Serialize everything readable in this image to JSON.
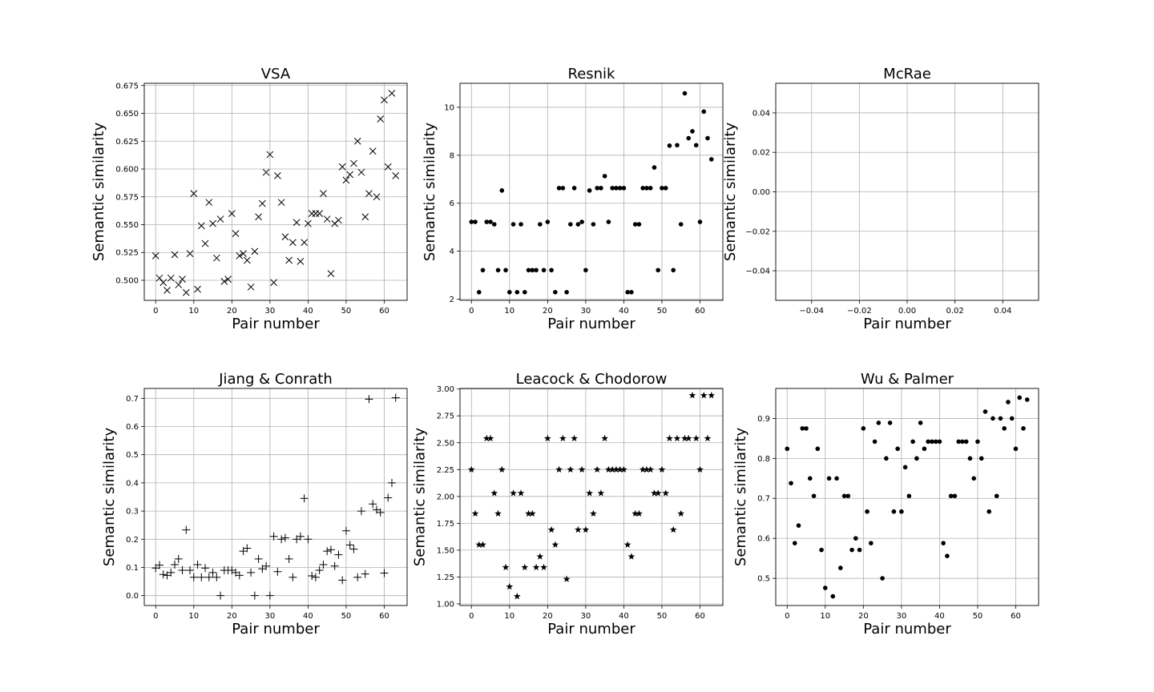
{
  "figure": {
    "background": "#ffffff",
    "marker_color": "#000000",
    "grid_color": "#b0b0b0"
  },
  "chart_data": [
    {
      "type": "scatter",
      "title": "VSA",
      "xlabel": "Pair number",
      "ylabel": "Semantic similarity",
      "marker": "x",
      "grid": true,
      "xlim": [
        -3,
        66
      ],
      "ylim": [
        0.482,
        0.677
      ],
      "xticks": [
        0,
        10,
        20,
        30,
        40,
        50,
        60
      ],
      "xtick_labels": [
        "0",
        "10",
        "20",
        "30",
        "40",
        "50",
        "60"
      ],
      "yticks": [
        0.5,
        0.525,
        0.55,
        0.575,
        0.6,
        0.625,
        0.65,
        0.675
      ],
      "ytick_labels": [
        "0.500",
        "0.525",
        "0.550",
        "0.575",
        "0.600",
        "0.625",
        "0.650",
        "0.675"
      ],
      "x": [
        0,
        1,
        2,
        3,
        4,
        5,
        6,
        7,
        8,
        9,
        10,
        11,
        12,
        13,
        14,
        15,
        16,
        17,
        18,
        19,
        20,
        21,
        22,
        23,
        24,
        25,
        26,
        27,
        28,
        29,
        30,
        31,
        32,
        33,
        34,
        35,
        36,
        37,
        38,
        39,
        40,
        41,
        42,
        43,
        44,
        45,
        46,
        47,
        48,
        49,
        50,
        51,
        52,
        53,
        54,
        55,
        56,
        57,
        58,
        59,
        60,
        61,
        62,
        63
      ],
      "y": [
        0.522,
        0.502,
        0.498,
        0.491,
        0.502,
        0.523,
        0.496,
        0.501,
        0.489,
        0.524,
        0.578,
        0.492,
        0.549,
        0.533,
        0.57,
        0.551,
        0.52,
        0.555,
        0.499,
        0.501,
        0.56,
        0.542,
        0.522,
        0.524,
        0.518,
        0.494,
        0.526,
        0.557,
        0.569,
        0.597,
        0.613,
        0.498,
        0.594,
        0.57,
        0.539,
        0.518,
        0.534,
        0.552,
        0.517,
        0.534,
        0.551,
        0.56,
        0.56,
        0.56,
        0.578,
        0.555,
        0.506,
        0.551,
        0.554,
        0.602,
        0.59,
        0.595,
        0.605,
        0.625,
        0.597,
        0.557,
        0.578,
        0.616,
        0.575,
        0.645,
        0.662,
        0.602,
        0.668,
        0.594
      ]
    },
    {
      "type": "scatter",
      "title": "Resnik",
      "xlabel": "Pair number",
      "ylabel": "Semantic similarity",
      "marker": "dot",
      "grid": true,
      "xlim": [
        -3,
        66
      ],
      "ylim": [
        1.95,
        11.0
      ],
      "xticks": [
        0,
        10,
        20,
        30,
        40,
        50,
        60
      ],
      "xtick_labels": [
        "0",
        "10",
        "20",
        "30",
        "40",
        "50",
        "60"
      ],
      "yticks": [
        2,
        4,
        6,
        8,
        10
      ],
      "ytick_labels": [
        "2",
        "4",
        "6",
        "8",
        "10"
      ],
      "x": [
        0,
        1,
        2,
        3,
        4,
        5,
        6,
        7,
        8,
        9,
        10,
        11,
        12,
        13,
        14,
        15,
        16,
        17,
        18,
        19,
        20,
        21,
        22,
        23,
        24,
        25,
        26,
        27,
        28,
        29,
        30,
        31,
        32,
        33,
        34,
        35,
        36,
        37,
        38,
        39,
        40,
        41,
        42,
        43,
        44,
        45,
        46,
        47,
        48,
        49,
        50,
        51,
        52,
        53,
        54,
        55,
        56,
        57,
        58,
        59,
        60,
        61,
        62,
        63
      ],
      "y": [
        5.22,
        5.22,
        2.29,
        3.21,
        5.22,
        5.22,
        5.12,
        3.21,
        6.53,
        3.21,
        2.29,
        5.12,
        2.29,
        5.12,
        2.29,
        3.21,
        3.21,
        3.21,
        5.12,
        3.21,
        5.22,
        3.21,
        2.29,
        6.63,
        6.63,
        2.29,
        5.12,
        6.63,
        5.12,
        5.22,
        3.21,
        6.53,
        5.12,
        6.63,
        6.63,
        7.13,
        5.22,
        6.63,
        6.63,
        6.63,
        6.63,
        2.29,
        2.29,
        5.12,
        5.12,
        6.63,
        6.63,
        6.63,
        7.49,
        3.21,
        6.63,
        6.63,
        8.4,
        3.21,
        8.42,
        5.12,
        10.58,
        8.71,
        9.0,
        8.42,
        5.22,
        9.82,
        8.71,
        7.83
      ]
    },
    {
      "type": "scatter",
      "title": "McRae",
      "xlabel": "Pair number",
      "ylabel": "Semantic similarity",
      "marker": "none",
      "grid": true,
      "xlim": [
        -0.055,
        0.055
      ],
      "ylim": [
        -0.055,
        0.055
      ],
      "xticks": [
        -0.04,
        -0.02,
        0.0,
        0.02,
        0.04
      ],
      "xtick_labels": [
        "−0.04",
        "−0.02",
        "0.00",
        "0.02",
        "0.04"
      ],
      "yticks": [
        -0.04,
        -0.02,
        0.0,
        0.02,
        0.04
      ],
      "ytick_labels": [
        "−0.04",
        "−0.02",
        "0.00",
        "0.02",
        "0.04"
      ],
      "x": [],
      "y": []
    },
    {
      "type": "scatter",
      "title": "Jiang & Conrath",
      "xlabel": "Pair number",
      "ylabel": "Semantic similarity",
      "marker": "plus",
      "grid": true,
      "xlim": [
        -3,
        66
      ],
      "ylim": [
        -0.035,
        0.735
      ],
      "xticks": [
        0,
        10,
        20,
        30,
        40,
        50,
        60
      ],
      "xtick_labels": [
        "0",
        "10",
        "20",
        "30",
        "40",
        "50",
        "60"
      ],
      "yticks": [
        0.0,
        0.1,
        0.2,
        0.3,
        0.4,
        0.5,
        0.6,
        0.7
      ],
      "ytick_labels": [
        "0.0",
        "0.1",
        "0.2",
        "0.3",
        "0.4",
        "0.5",
        "0.6",
        "0.7"
      ],
      "x": [
        0,
        1,
        2,
        3,
        4,
        5,
        6,
        7,
        8,
        9,
        10,
        11,
        12,
        13,
        14,
        15,
        16,
        17,
        18,
        19,
        20,
        21,
        22,
        23,
        24,
        25,
        26,
        27,
        28,
        29,
        30,
        31,
        32,
        33,
        34,
        35,
        36,
        37,
        38,
        39,
        40,
        41,
        42,
        43,
        44,
        45,
        46,
        47,
        48,
        49,
        50,
        51,
        52,
        53,
        54,
        55,
        56,
        57,
        58,
        59,
        60,
        61,
        62,
        63
      ],
      "y": [
        0.098,
        0.108,
        0.075,
        0.072,
        0.082,
        0.11,
        0.13,
        0.09,
        0.233,
        0.09,
        0.065,
        0.11,
        0.065,
        0.098,
        0.065,
        0.082,
        0.065,
        0.0,
        0.09,
        0.09,
        0.09,
        0.082,
        0.072,
        0.158,
        0.168,
        0.082,
        0.0,
        0.13,
        0.095,
        0.105,
        0.0,
        0.21,
        0.085,
        0.2,
        0.205,
        0.13,
        0.065,
        0.2,
        0.21,
        0.345,
        0.2,
        0.07,
        0.065,
        0.09,
        0.11,
        0.158,
        0.163,
        0.105,
        0.145,
        0.055,
        0.23,
        0.18,
        0.165,
        0.065,
        0.3,
        0.077,
        0.697,
        0.325,
        0.305,
        0.295,
        0.08,
        0.347,
        0.4,
        0.702
      ]
    },
    {
      "type": "scatter",
      "title": "Leacock & Chodorow",
      "xlabel": "Pair number",
      "ylabel": "Semantic similarity",
      "marker": "star",
      "grid": true,
      "xlim": [
        -3,
        66
      ],
      "ylim": [
        0.985,
        3.005
      ],
      "xticks": [
        0,
        10,
        20,
        30,
        40,
        50,
        60
      ],
      "xtick_labels": [
        "0",
        "10",
        "20",
        "30",
        "40",
        "50",
        "60"
      ],
      "yticks": [
        1.0,
        1.25,
        1.5,
        1.75,
        2.0,
        2.25,
        2.5,
        2.75,
        3.0
      ],
      "ytick_labels": [
        "1.00",
        "1.25",
        "1.50",
        "1.75",
        "2.00",
        "2.25",
        "2.50",
        "2.75",
        "3.00"
      ],
      "x": [
        0,
        1,
        2,
        3,
        4,
        5,
        6,
        7,
        8,
        9,
        10,
        11,
        12,
        13,
        14,
        15,
        16,
        17,
        18,
        19,
        20,
        21,
        22,
        23,
        24,
        25,
        26,
        27,
        28,
        29,
        30,
        31,
        32,
        33,
        34,
        35,
        36,
        37,
        38,
        39,
        40,
        41,
        42,
        43,
        44,
        45,
        46,
        47,
        48,
        49,
        50,
        51,
        52,
        53,
        54,
        55,
        56,
        57,
        58,
        59,
        60,
        61,
        62,
        63
      ],
      "y": [
        2.25,
        1.84,
        1.55,
        1.55,
        2.54,
        2.54,
        2.03,
        1.84,
        2.25,
        1.34,
        1.16,
        2.03,
        1.07,
        2.03,
        1.34,
        1.84,
        1.84,
        1.34,
        1.44,
        1.34,
        2.54,
        1.69,
        1.55,
        2.25,
        2.54,
        1.23,
        2.25,
        2.54,
        1.69,
        2.25,
        1.69,
        2.03,
        1.84,
        2.25,
        2.03,
        2.54,
        2.25,
        2.25,
        2.25,
        2.25,
        2.25,
        1.55,
        1.44,
        1.84,
        1.84,
        2.25,
        2.25,
        2.25,
        2.03,
        2.03,
        2.25,
        2.03,
        2.54,
        1.69,
        2.54,
        1.84,
        2.54,
        2.54,
        2.94,
        2.54,
        2.25,
        2.94,
        2.54,
        2.94
      ]
    },
    {
      "type": "scatter",
      "title": "Wu & Palmer",
      "xlabel": "Pair number",
      "ylabel": "Semantic similarity",
      "marker": "dot",
      "grid": true,
      "xlim": [
        -3,
        66
      ],
      "ylim": [
        0.432,
        0.975
      ],
      "xticks": [
        0,
        10,
        20,
        30,
        40,
        50,
        60
      ],
      "xtick_labels": [
        "0",
        "10",
        "20",
        "30",
        "40",
        "50",
        "60"
      ],
      "yticks": [
        0.5,
        0.6,
        0.7,
        0.8,
        0.9
      ],
      "ytick_labels": [
        "0.5",
        "0.6",
        "0.7",
        "0.8",
        "0.9"
      ],
      "x": [
        0,
        1,
        2,
        3,
        4,
        5,
        6,
        7,
        8,
        9,
        10,
        11,
        12,
        13,
        14,
        15,
        16,
        17,
        18,
        19,
        20,
        21,
        22,
        23,
        24,
        25,
        26,
        27,
        28,
        29,
        30,
        31,
        32,
        33,
        34,
        35,
        36,
        37,
        38,
        39,
        40,
        41,
        42,
        43,
        44,
        45,
        46,
        47,
        48,
        49,
        50,
        51,
        52,
        53,
        54,
        55,
        56,
        57,
        58,
        59,
        60,
        61,
        62,
        63
      ],
      "y": [
        0.824,
        0.738,
        0.588,
        0.632,
        0.875,
        0.875,
        0.75,
        0.706,
        0.824,
        0.571,
        0.476,
        0.75,
        0.455,
        0.75,
        0.526,
        0.706,
        0.706,
        0.571,
        0.6,
        0.571,
        0.875,
        0.667,
        0.588,
        0.842,
        0.889,
        0.5,
        0.8,
        0.889,
        0.667,
        0.824,
        0.667,
        0.778,
        0.706,
        0.842,
        0.8,
        0.889,
        0.824,
        0.842,
        0.842,
        0.842,
        0.842,
        0.588,
        0.556,
        0.706,
        0.706,
        0.842,
        0.842,
        0.842,
        0.8,
        0.75,
        0.842,
        0.8,
        0.917,
        0.667,
        0.9,
        0.706,
        0.9,
        0.875,
        0.941,
        0.9,
        0.824,
        0.952,
        0.875,
        0.947
      ]
    }
  ]
}
